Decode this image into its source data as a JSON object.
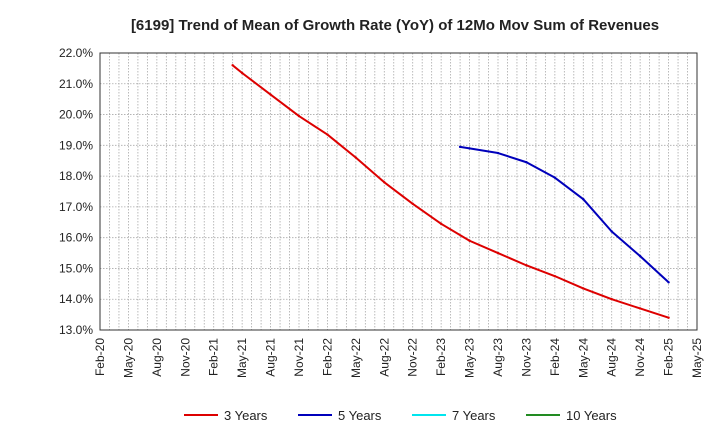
{
  "chart_data": {
    "type": "line",
    "title": "[6199]  Trend of Mean of Growth Rate (YoY) of 12Mo Mov Sum of Revenues",
    "xlabel": "",
    "ylabel": "",
    "x_ticks": [
      "Feb-20",
      "May-20",
      "Aug-20",
      "Nov-20",
      "Feb-21",
      "May-21",
      "Aug-21",
      "Nov-21",
      "Feb-22",
      "May-22",
      "Aug-22",
      "Nov-22",
      "Feb-23",
      "May-23",
      "Aug-23",
      "Nov-23",
      "Feb-24",
      "May-24",
      "Aug-24",
      "Nov-24",
      "Feb-25",
      "May-25"
    ],
    "y_ticks": [
      "13.0%",
      "14.0%",
      "15.0%",
      "16.0%",
      "17.0%",
      "18.0%",
      "19.0%",
      "20.0%",
      "21.0%",
      "22.0%"
    ],
    "ylim": [
      13.0,
      22.0
    ],
    "grid": true,
    "legend_position": "bottom",
    "series": [
      {
        "name": "3 Years",
        "color": "#dd0000",
        "points": [
          [
            "Apr-21",
            21.6
          ],
          [
            "May-21",
            21.35
          ],
          [
            "Aug-21",
            20.65
          ],
          [
            "Nov-21",
            19.95
          ],
          [
            "Feb-22",
            19.35
          ],
          [
            "May-22",
            18.6
          ],
          [
            "Aug-22",
            17.8
          ],
          [
            "Nov-22",
            17.1
          ],
          [
            "Feb-23",
            16.45
          ],
          [
            "May-23",
            15.9
          ],
          [
            "Aug-23",
            15.5
          ],
          [
            "Nov-23",
            15.1
          ],
          [
            "Feb-24",
            14.75
          ],
          [
            "May-24",
            14.35
          ],
          [
            "Aug-24",
            14.0
          ],
          [
            "Nov-24",
            13.7
          ],
          [
            "Feb-25",
            13.4
          ]
        ]
      },
      {
        "name": "5 Years",
        "color": "#0000bb",
        "points": [
          [
            "Apr-23",
            18.95
          ],
          [
            "May-23",
            18.9
          ],
          [
            "Aug-23",
            18.75
          ],
          [
            "Nov-23",
            18.45
          ],
          [
            "Feb-24",
            17.95
          ],
          [
            "May-24",
            17.25
          ],
          [
            "Aug-24",
            16.2
          ],
          [
            "Nov-24",
            15.4
          ],
          [
            "Feb-25",
            14.55
          ]
        ]
      },
      {
        "name": "7 Years",
        "color": "#00e5ee",
        "points": []
      },
      {
        "name": "10 Years",
        "color": "#228b22",
        "points": []
      }
    ]
  }
}
